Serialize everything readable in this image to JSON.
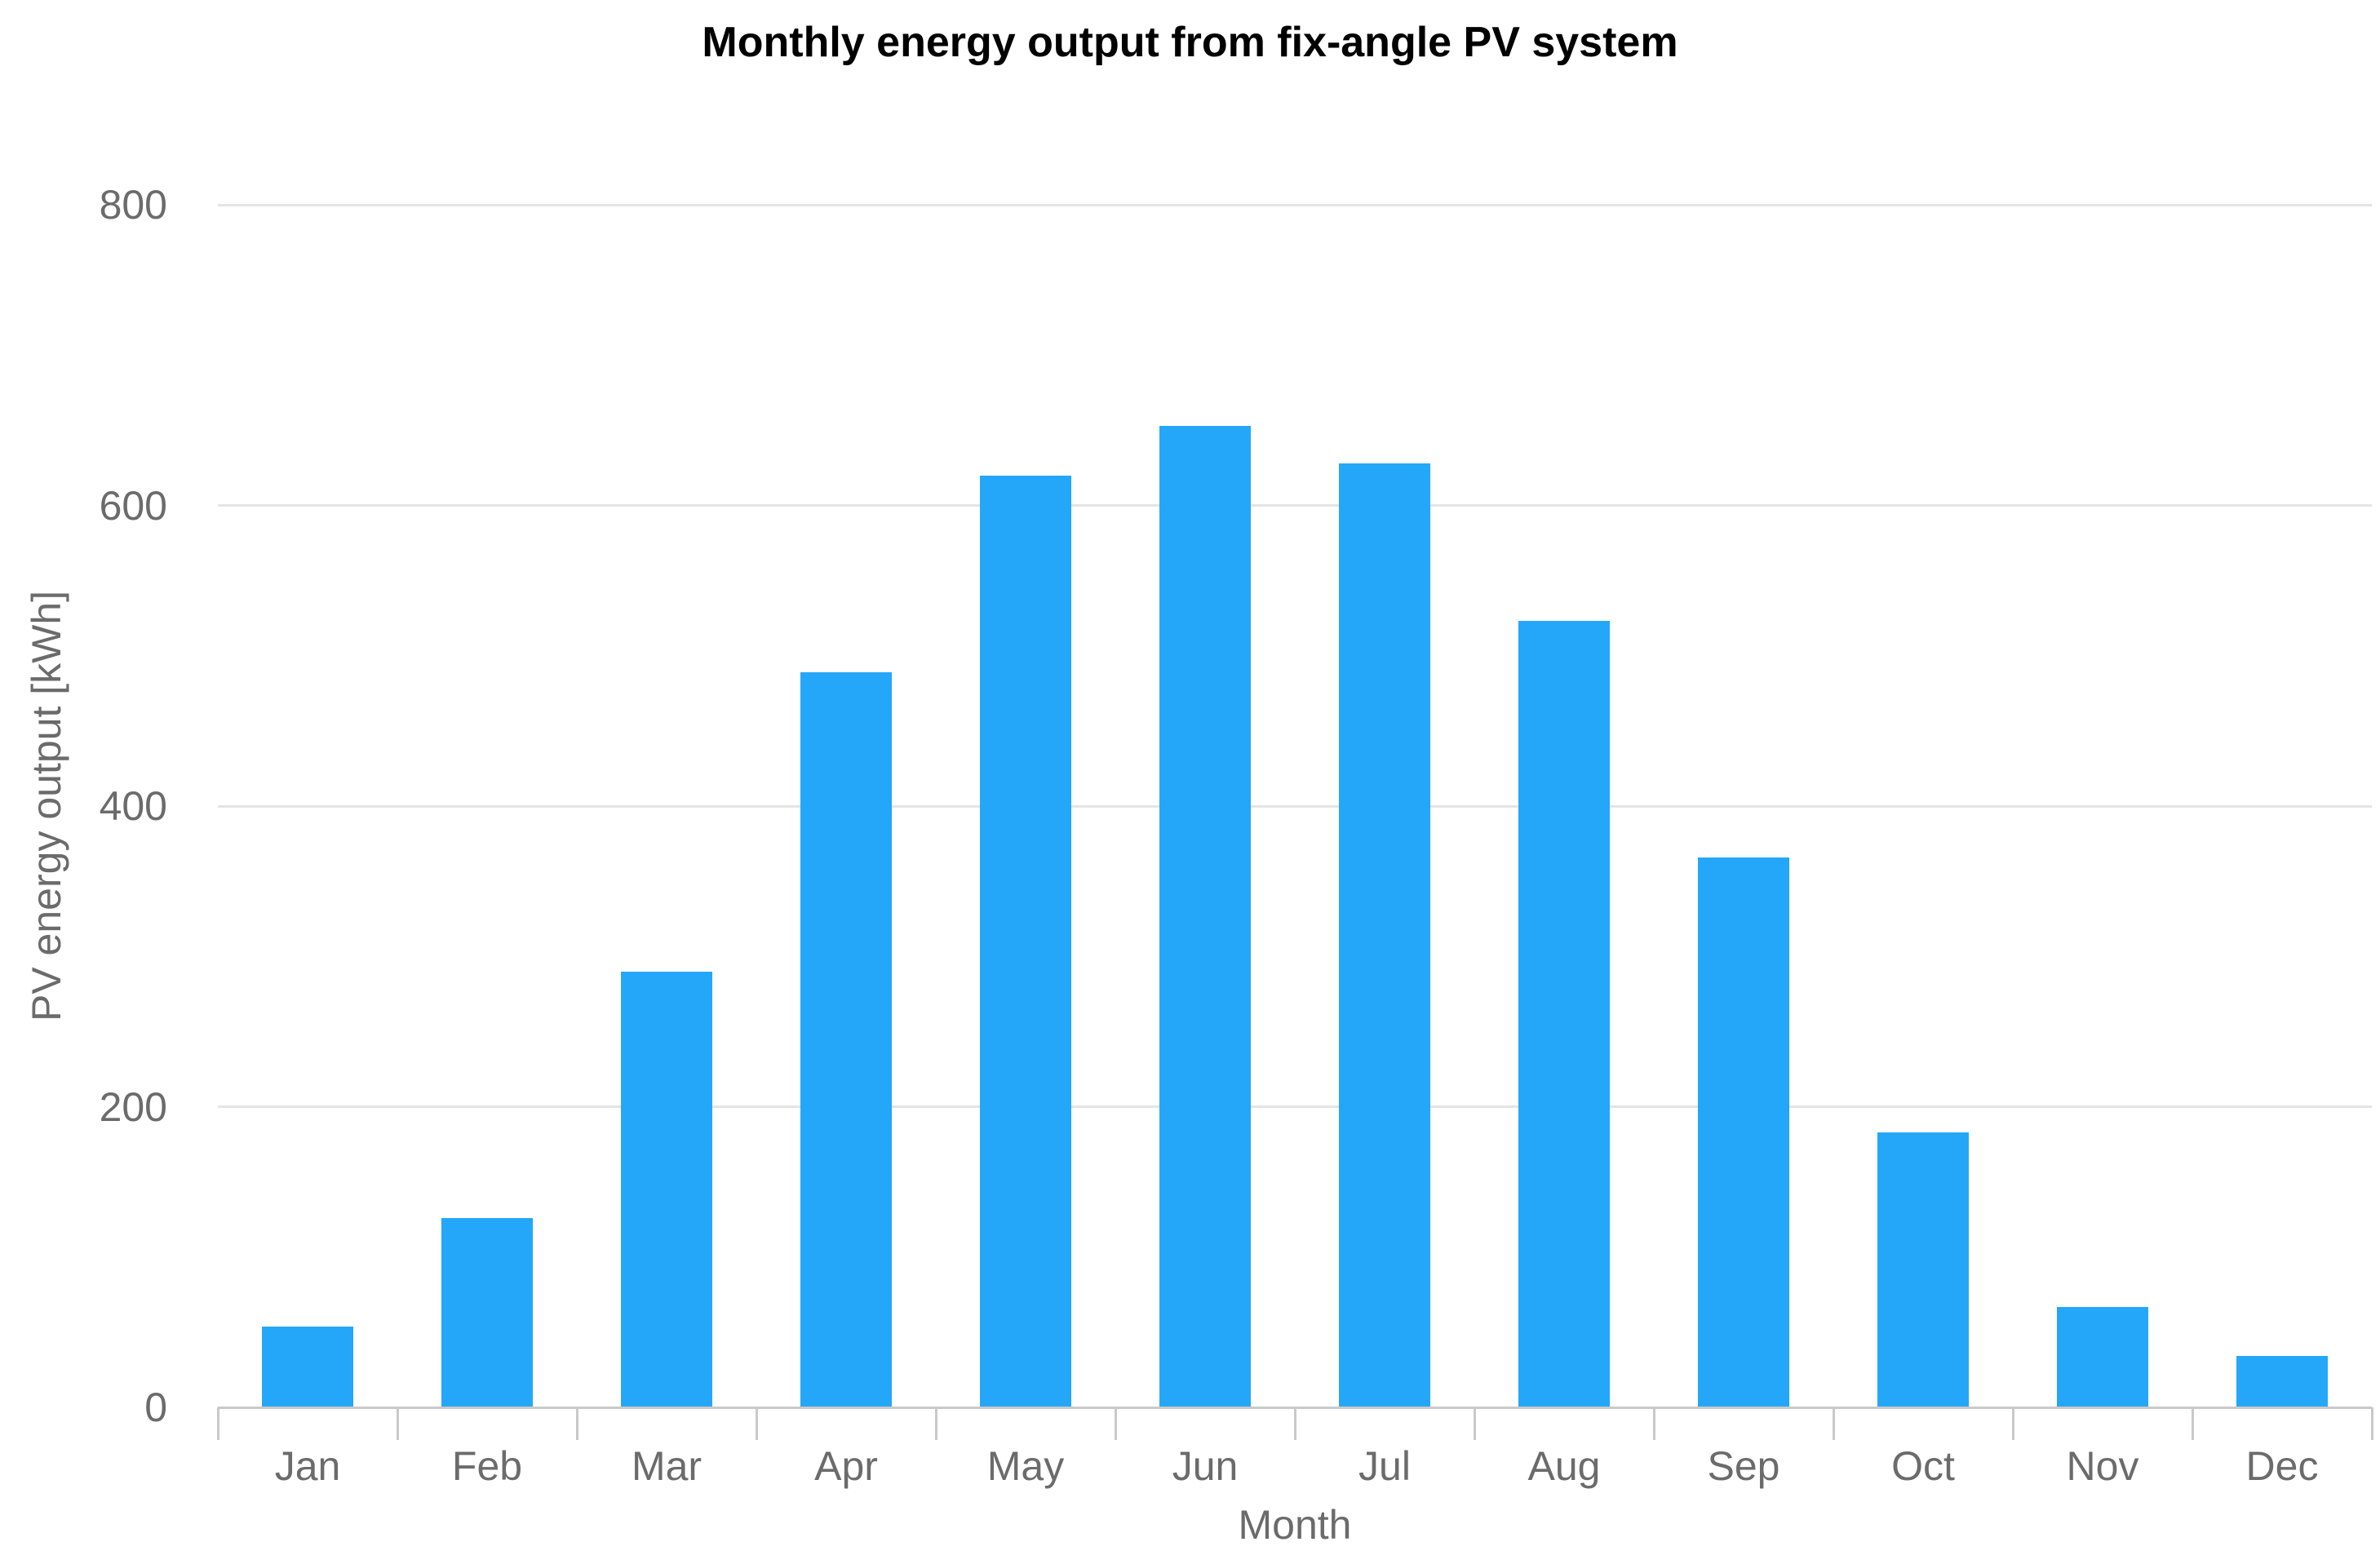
{
  "chart_data": {
    "type": "bar",
    "title": "Monthly energy output from fix-angle PV system",
    "categories": [
      "Jan",
      "Feb",
      "Mar",
      "Apr",
      "May",
      "Jun",
      "Jul",
      "Aug",
      "Sep",
      "Oct",
      "Nov",
      "Dec"
    ],
    "values": [
      54,
      126,
      290,
      489,
      620,
      653,
      628,
      523,
      366,
      183,
      67,
      34
    ],
    "xlabel": "Month",
    "ylabel": "PV energy output [kWh]",
    "ylim": [
      0,
      800
    ],
    "yticks": [
      0,
      200,
      400,
      600,
      800
    ],
    "grid": true,
    "legend": false,
    "bar_color": "#24a7f8",
    "grid_color": "#e4e4e4",
    "axis_line_color": "#c9c9c9",
    "tick_mark_color": "#c9c9c9",
    "tick_label_color": "#6b6b6b",
    "title_color": "#000000",
    "background_color": "#ffffff"
  }
}
